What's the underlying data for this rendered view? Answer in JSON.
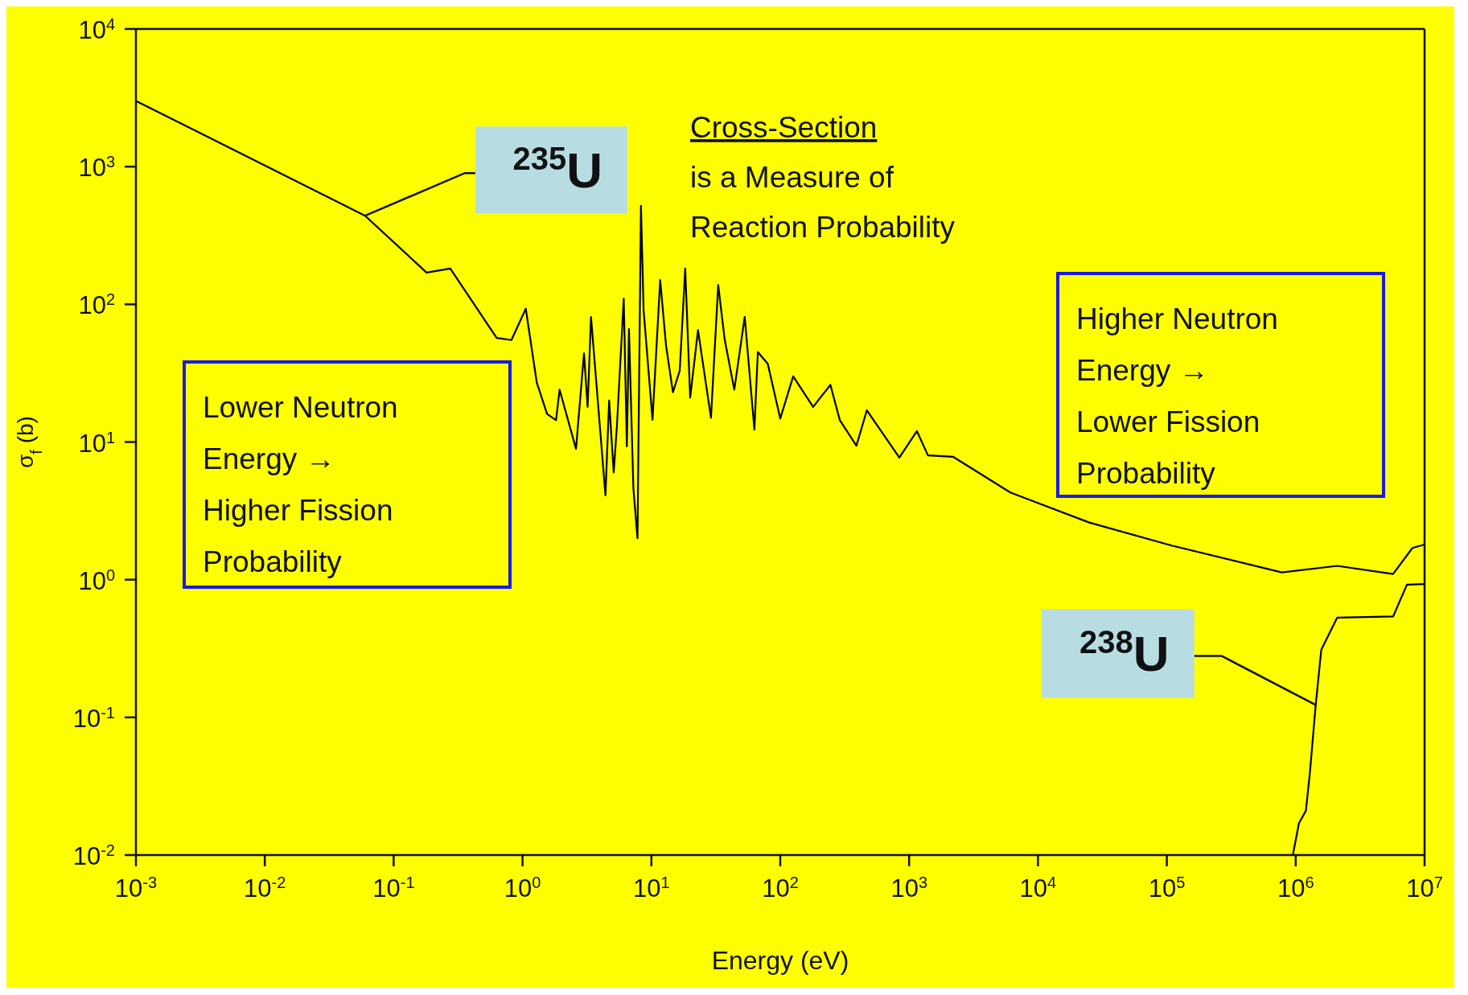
{
  "chart_data": {
    "type": "line",
    "xlabel": "Energy (eV)",
    "ylabel": "σ$_{f}$ (b)",
    "log": "xy",
    "marker": "none",
    "line_style": "solid",
    "xlim": [
      0.001,
      10000000
    ],
    "ylim": [
      0.01,
      10000
    ],
    "xticks": [
      {
        "value": 0.001,
        "label": "10$^{-3}$"
      },
      {
        "value": 0.01,
        "label": "10$^{-2}$"
      },
      {
        "value": 0.1,
        "label": "10$^{-1}$"
      },
      {
        "value": 1,
        "label": "10$^{0}$"
      },
      {
        "value": 10,
        "label": "10$^{1}$"
      },
      {
        "value": 100,
        "label": "10$^{2}$"
      },
      {
        "value": 1000,
        "label": "10$^{3}$"
      },
      {
        "value": 10000,
        "label": "10$^{4}$"
      },
      {
        "value": 100000,
        "label": "10$^{5}$"
      },
      {
        "value": 1000000,
        "label": "10$^{6}$"
      },
      {
        "value": 10000000,
        "label": "10$^{7}$"
      }
    ],
    "yticks": [
      {
        "value": 0.01,
        "label": "10$^{-2}$"
      },
      {
        "value": 0.1,
        "label": "10$^{-1}$"
      },
      {
        "value": 1,
        "label": "10$^{0}$"
      },
      {
        "value": 10,
        "label": "10$^{1}$"
      },
      {
        "value": 100,
        "label": "10$^{2}$"
      },
      {
        "value": 1000,
        "label": "10$^{3}$"
      },
      {
        "value": 10000,
        "label": "10$^{4}$"
      }
    ],
    "series": [
      {
        "color": "#000000",
        "x": [
          0.001,
          0.06,
          0.18,
          0.275,
          0.63,
          0.82,
          1.06,
          1.29,
          1.55,
          1.82,
          1.94,
          2.6,
          3.0,
          3.2,
          3.4,
          4.4,
          4.7,
          5.1,
          5.4,
          6.1,
          6.45,
          6.7,
          7.25,
          7.8,
          8.3,
          8.7,
          10.2,
          11.7,
          13,
          14.7,
          16.6,
          18.3,
          20,
          23,
          29,
          33,
          37,
          44,
          53,
          63,
          67,
          80,
          100,
          126,
          180,
          245,
          290,
          390,
          470,
          840,
          1150,
          1400,
          2200,
          6100,
          25000,
          109000,
          780000,
          2100000,
          5700000,
          8050000,
          10000000
        ],
        "values": [
          3000,
          440,
          170,
          182,
          57,
          55,
          93,
          27,
          16,
          14.4,
          24,
          8.9,
          44,
          18,
          81,
          4.1,
          20,
          6,
          13,
          110,
          9.3,
          66,
          4.6,
          2,
          520,
          91,
          14.5,
          150,
          50,
          23,
          33,
          182,
          21,
          65,
          15,
          138,
          56,
          24,
          81,
          12.3,
          45,
          37,
          14.8,
          30,
          18,
          26,
          14.4,
          9.4,
          17,
          7.7,
          12,
          8,
          7.8,
          4.3,
          2.6,
          1.77,
          1.13,
          1.26,
          1.1,
          1.7,
          1.8
        ]
      },
      {
        "color": "#000000",
        "x": [
          950000,
          1060000,
          1200000,
          1290000,
          1430000,
          1580000,
          2100000,
          5700000,
          7300000,
          10000000
        ],
        "values": [
          0.01,
          0.017,
          0.021,
          0.04,
          0.123,
          0.31,
          0.53,
          0.54,
          0.92,
          0.93
        ]
      }
    ],
    "annotations": [
      "Cross-Section\nis a Measure of\nReaction Probability",
      "Lower Neutron\nEnergy →\nHigher Fission\nProbability",
      "Higher Neutron\nEnergy →\nLower Fission\nProbability",
      {
        "text": "$^{235}$U",
        "x": 0.06,
        "y": 440
      },
      {
        "text": "$^{238}$U",
        "x": 1430000,
        "y": 0.123
      }
    ]
  }
}
